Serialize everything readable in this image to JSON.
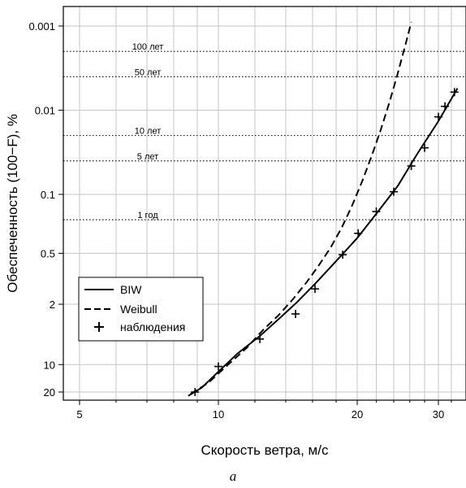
{
  "chart_data": {
    "type": "line",
    "xlabel": "Скорость ветра, м/с",
    "ylabel": "Обеспеченность (100−F), %",
    "x_scale": "log",
    "y_scale": "extreme-value",
    "xlim": [
      4.3,
      33
    ],
    "x_ticks": [
      5,
      10,
      20,
      30
    ],
    "x_minor_grid": [
      6,
      7,
      8,
      9,
      12,
      14,
      16,
      18,
      22,
      24,
      26,
      28,
      32
    ],
    "y_ticks": [
      {
        "label": "0.001",
        "value": 0.001
      },
      {
        "label": "0.01",
        "value": 0.01
      },
      {
        "label": "0.1",
        "value": 0.1
      },
      {
        "label": "0.5",
        "value": 0.5
      },
      {
        "label": "2",
        "value": 2
      },
      {
        "label": "10",
        "value": 10
      },
      {
        "label": "20",
        "value": 20
      }
    ],
    "return_periods": [
      {
        "label": "100 лет",
        "value": 0.002
      },
      {
        "label": "50 лет",
        "value": 0.004
      },
      {
        "label": "10 лет",
        "value": 0.02
      },
      {
        "label": "5 лет",
        "value": 0.04
      },
      {
        "label": "1 год",
        "value": 0.2
      }
    ],
    "series": [
      {
        "name": "BIW",
        "style": "solid",
        "x": [
          8.6,
          9.2,
          10,
          11,
          12.3,
          13.5,
          14.8,
          16.2,
          18.0,
          20.0,
          22.0,
          24.5,
          27.0,
          30.0,
          33.0
        ],
        "y": [
          22,
          18,
          12,
          7.5,
          4.7,
          3.0,
          1.9,
          1.15,
          0.62,
          0.33,
          0.17,
          0.079,
          0.033,
          0.0135,
          0.0055
        ]
      },
      {
        "name": "Weibull",
        "style": "dashed",
        "x": [
          8.7,
          9.5,
          10.5,
          11.5,
          12.5,
          13.5,
          14.5,
          15.5,
          16.5,
          17.5,
          18.5,
          19.5,
          20.5,
          21.5,
          22.5,
          23.5,
          24.5,
          25.5,
          26.2
        ],
        "y": [
          21,
          16,
          10,
          6.5,
          4.0,
          2.7,
          1.75,
          1.12,
          0.7,
          0.43,
          0.25,
          0.135,
          0.07,
          0.035,
          0.017,
          0.008,
          0.0036,
          0.0016,
          0.0009
        ]
      },
      {
        "name": "наблюдения",
        "style": "markers",
        "x": [
          8.9,
          10.0,
          12.3,
          14.7,
          16.2,
          18.6,
          20.1,
          22.0,
          24.0,
          26.2,
          28.0,
          30.0,
          31.0,
          32.5
        ],
        "y": [
          20,
          10.5,
          5.1,
          2.6,
          1.32,
          0.52,
          0.29,
          0.16,
          0.093,
          0.046,
          0.028,
          0.012,
          0.009,
          0.0061
        ]
      }
    ],
    "legend_position": "bottom-left",
    "grid": true
  },
  "caption": "a"
}
